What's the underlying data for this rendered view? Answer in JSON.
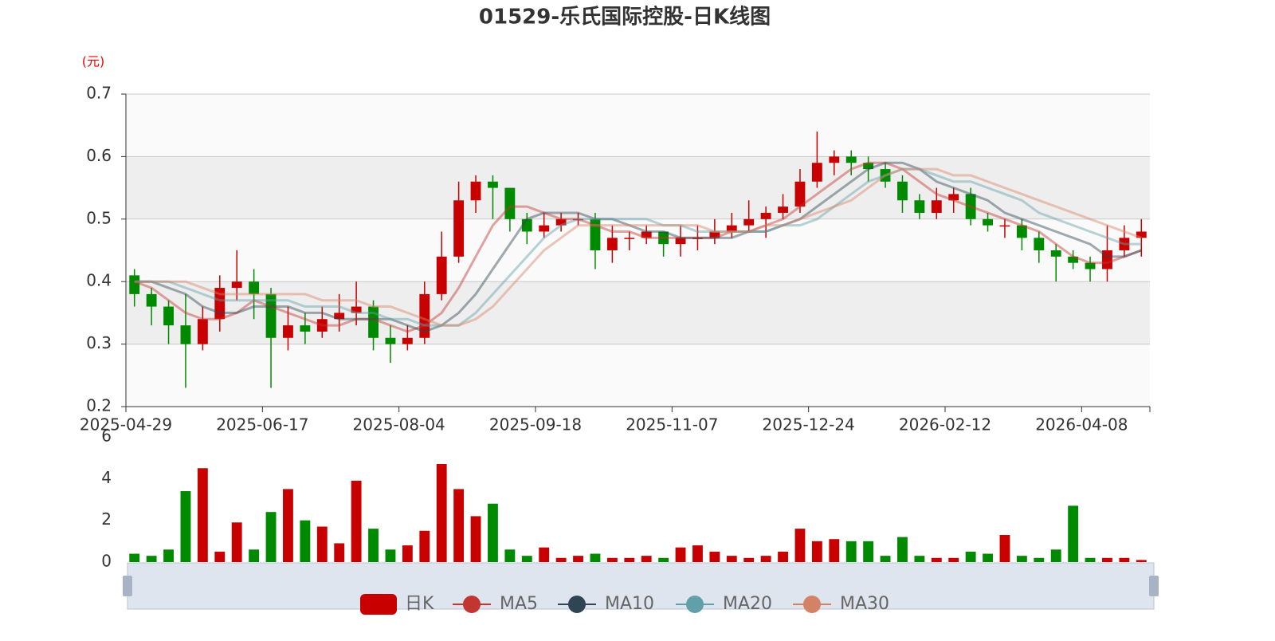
{
  "chart_data": {
    "type": "candlestick",
    "title": "01529-乐氏国际控股-日K线图",
    "y_unit_label": "(元)",
    "candle_name": "日K",
    "up_color": "#c80000",
    "down_color": "#008a00",
    "grid": true,
    "ylim": [
      0.2,
      0.7
    ],
    "yticks": [
      0.2,
      0.3,
      0.4,
      0.5,
      0.6,
      0.7
    ],
    "categories": [
      "2025-04-29",
      null,
      null,
      null,
      null,
      null,
      null,
      null,
      "2025-06-17",
      null,
      null,
      null,
      null,
      null,
      null,
      null,
      "2025-08-04",
      null,
      null,
      null,
      null,
      null,
      null,
      null,
      "2025-09-18",
      null,
      null,
      null,
      null,
      null,
      null,
      null,
      "2025-11-07",
      null,
      null,
      null,
      null,
      null,
      null,
      null,
      "2025-12-24",
      null,
      null,
      null,
      null,
      null,
      null,
      null,
      "2026-02-12",
      null,
      null,
      null,
      null,
      null,
      null,
      null,
      "2026-04-08",
      null,
      null,
      null
    ],
    "open": [
      0.41,
      0.38,
      0.36,
      0.33,
      0.3,
      0.34,
      0.39,
      0.4,
      0.38,
      0.31,
      0.33,
      0.32,
      0.34,
      0.35,
      0.36,
      0.31,
      0.3,
      0.31,
      0.38,
      0.44,
      0.53,
      0.56,
      0.55,
      0.5,
      0.48,
      0.49,
      0.5,
      0.5,
      0.45,
      0.47,
      0.47,
      0.48,
      0.46,
      0.47,
      0.47,
      0.48,
      0.49,
      0.5,
      0.51,
      0.52,
      0.56,
      0.59,
      0.6,
      0.59,
      0.58,
      0.56,
      0.53,
      0.51,
      0.53,
      0.54,
      0.5,
      0.49,
      0.49,
      0.47,
      0.45,
      0.44,
      0.43,
      0.42,
      0.45,
      0.47
    ],
    "close": [
      0.38,
      0.36,
      0.33,
      0.3,
      0.34,
      0.39,
      0.4,
      0.38,
      0.31,
      0.33,
      0.32,
      0.34,
      0.35,
      0.36,
      0.31,
      0.3,
      0.31,
      0.38,
      0.44,
      0.53,
      0.56,
      0.55,
      0.5,
      0.48,
      0.49,
      0.5,
      0.5,
      0.45,
      0.47,
      0.47,
      0.48,
      0.46,
      0.47,
      0.47,
      0.48,
      0.49,
      0.5,
      0.51,
      0.52,
      0.56,
      0.59,
      0.6,
      0.59,
      0.58,
      0.56,
      0.53,
      0.51,
      0.53,
      0.54,
      0.5,
      0.49,
      0.49,
      0.47,
      0.45,
      0.44,
      0.43,
      0.42,
      0.45,
      0.47,
      0.48
    ],
    "high": [
      0.42,
      0.39,
      0.37,
      0.38,
      0.36,
      0.41,
      0.45,
      0.42,
      0.39,
      0.36,
      0.35,
      0.36,
      0.38,
      0.4,
      0.37,
      0.33,
      0.33,
      0.4,
      0.48,
      0.56,
      0.57,
      0.57,
      0.55,
      0.51,
      0.51,
      0.51,
      0.51,
      0.51,
      0.49,
      0.48,
      0.49,
      0.48,
      0.49,
      0.49,
      0.5,
      0.51,
      0.53,
      0.52,
      0.54,
      0.58,
      0.64,
      0.61,
      0.61,
      0.6,
      0.59,
      0.57,
      0.54,
      0.55,
      0.55,
      0.55,
      0.51,
      0.5,
      0.5,
      0.48,
      0.46,
      0.45,
      0.44,
      0.49,
      0.49,
      0.5
    ],
    "low": [
      0.36,
      0.33,
      0.3,
      0.23,
      0.29,
      0.32,
      0.37,
      0.34,
      0.23,
      0.29,
      0.3,
      0.31,
      0.32,
      0.33,
      0.29,
      0.27,
      0.29,
      0.3,
      0.37,
      0.43,
      0.51,
      0.5,
      0.48,
      0.46,
      0.47,
      0.48,
      0.49,
      0.42,
      0.43,
      0.45,
      0.46,
      0.44,
      0.44,
      0.45,
      0.46,
      0.47,
      0.48,
      0.47,
      0.5,
      0.51,
      0.55,
      0.57,
      0.57,
      0.56,
      0.55,
      0.51,
      0.5,
      0.5,
      0.51,
      0.49,
      0.48,
      0.47,
      0.45,
      0.43,
      0.4,
      0.42,
      0.4,
      0.4,
      0.44,
      0.44
    ],
    "series": [
      {
        "name": "MA5",
        "color": "#c23531",
        "values": [
          0.4,
          0.39,
          0.37,
          0.35,
          0.34,
          0.34,
          0.35,
          0.37,
          0.36,
          0.35,
          0.34,
          0.33,
          0.33,
          0.34,
          0.34,
          0.33,
          0.32,
          0.33,
          0.35,
          0.39,
          0.44,
          0.49,
          0.52,
          0.52,
          0.51,
          0.5,
          0.5,
          0.49,
          0.48,
          0.48,
          0.47,
          0.47,
          0.47,
          0.47,
          0.47,
          0.48,
          0.48,
          0.49,
          0.5,
          0.52,
          0.54,
          0.56,
          0.58,
          0.59,
          0.59,
          0.58,
          0.56,
          0.54,
          0.53,
          0.52,
          0.51,
          0.5,
          0.49,
          0.48,
          0.46,
          0.44,
          0.43,
          0.43,
          0.44,
          0.45
        ]
      },
      {
        "name": "MA10",
        "color": "#2f4554",
        "values": [
          0.4,
          0.4,
          0.39,
          0.38,
          0.36,
          0.35,
          0.35,
          0.36,
          0.36,
          0.36,
          0.35,
          0.35,
          0.34,
          0.34,
          0.34,
          0.34,
          0.33,
          0.32,
          0.33,
          0.35,
          0.38,
          0.42,
          0.46,
          0.5,
          0.51,
          0.51,
          0.51,
          0.5,
          0.5,
          0.49,
          0.48,
          0.48,
          0.47,
          0.47,
          0.47,
          0.47,
          0.48,
          0.48,
          0.49,
          0.5,
          0.52,
          0.54,
          0.56,
          0.58,
          0.59,
          0.59,
          0.58,
          0.56,
          0.55,
          0.54,
          0.53,
          0.51,
          0.5,
          0.49,
          0.48,
          0.47,
          0.46,
          0.44,
          0.44,
          0.45
        ]
      },
      {
        "name": "MA20",
        "color": "#61a0a8",
        "values": [
          0.4,
          0.4,
          0.4,
          0.39,
          0.38,
          0.37,
          0.37,
          0.37,
          0.37,
          0.37,
          0.36,
          0.36,
          0.36,
          0.35,
          0.35,
          0.34,
          0.34,
          0.33,
          0.33,
          0.33,
          0.35,
          0.38,
          0.41,
          0.44,
          0.47,
          0.49,
          0.5,
          0.5,
          0.5,
          0.5,
          0.5,
          0.49,
          0.49,
          0.48,
          0.48,
          0.48,
          0.48,
          0.48,
          0.49,
          0.49,
          0.5,
          0.52,
          0.54,
          0.56,
          0.57,
          0.58,
          0.58,
          0.57,
          0.56,
          0.56,
          0.55,
          0.54,
          0.53,
          0.51,
          0.5,
          0.49,
          0.48,
          0.47,
          0.46,
          0.46
        ]
      },
      {
        "name": "MA30",
        "color": "#d48265",
        "values": [
          0.4,
          0.4,
          0.4,
          0.4,
          0.39,
          0.38,
          0.38,
          0.38,
          0.38,
          0.38,
          0.38,
          0.37,
          0.37,
          0.37,
          0.36,
          0.36,
          0.35,
          0.34,
          0.33,
          0.33,
          0.34,
          0.36,
          0.39,
          0.42,
          0.45,
          0.47,
          0.49,
          0.49,
          0.49,
          0.49,
          0.49,
          0.49,
          0.49,
          0.49,
          0.48,
          0.48,
          0.48,
          0.49,
          0.49,
          0.5,
          0.51,
          0.52,
          0.53,
          0.55,
          0.57,
          0.58,
          0.58,
          0.58,
          0.57,
          0.57,
          0.56,
          0.55,
          0.54,
          0.53,
          0.52,
          0.51,
          0.5,
          0.49,
          0.48,
          0.47
        ]
      }
    ],
    "volume": {
      "ylim": [
        0,
        6
      ],
      "yticks": [
        0,
        2,
        4,
        6
      ],
      "values": [
        0.4,
        0.3,
        0.6,
        3.4,
        4.5,
        0.5,
        1.9,
        0.6,
        2.4,
        3.5,
        2.0,
        1.7,
        0.9,
        3.9,
        1.6,
        0.6,
        0.8,
        1.5,
        4.7,
        3.5,
        2.2,
        2.8,
        0.6,
        0.3,
        0.7,
        0.2,
        0.3,
        0.4,
        0.2,
        0.2,
        0.3,
        0.2,
        0.7,
        0.8,
        0.5,
        0.3,
        0.2,
        0.3,
        0.5,
        1.6,
        1.0,
        1.1,
        1.0,
        1.0,
        0.3,
        1.2,
        0.3,
        0.2,
        0.2,
        0.5,
        0.4,
        1.3,
        0.3,
        0.2,
        0.6,
        2.7,
        0.2,
        0.2,
        0.2,
        0.1
      ]
    }
  }
}
